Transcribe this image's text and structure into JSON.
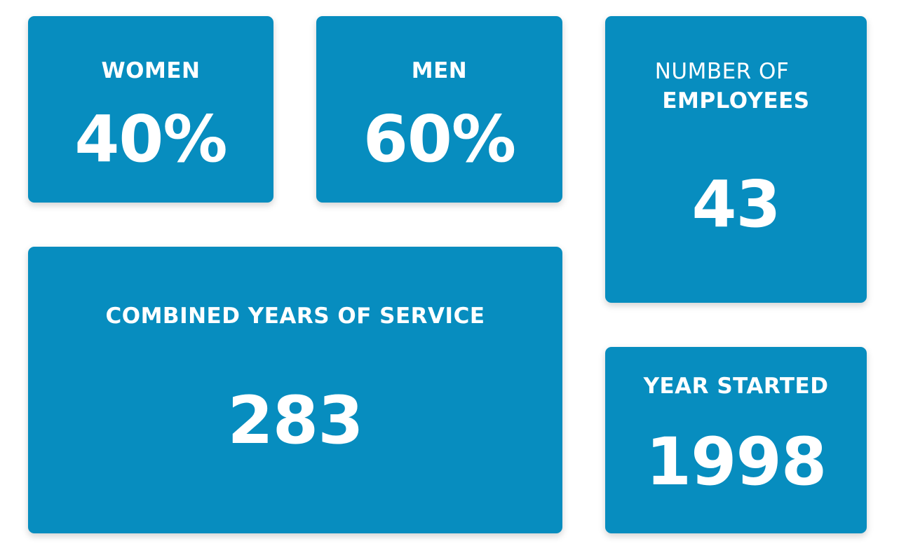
{
  "colors": {
    "card_background": "#078dbf",
    "text": "#ffffff",
    "page_background": "#ffffff"
  },
  "stats": {
    "women": {
      "label": "WOMEN",
      "value": "40%"
    },
    "men": {
      "label": "MEN",
      "value": "60%"
    },
    "employees": {
      "label_line1": "NUMBER OF",
      "label_line2": "EMPLOYEES",
      "value": "43"
    },
    "service": {
      "label": "COMBINED YEARS OF SERVICE",
      "value": "283"
    },
    "year_started": {
      "label": "YEAR STARTED",
      "value": "1998"
    }
  }
}
